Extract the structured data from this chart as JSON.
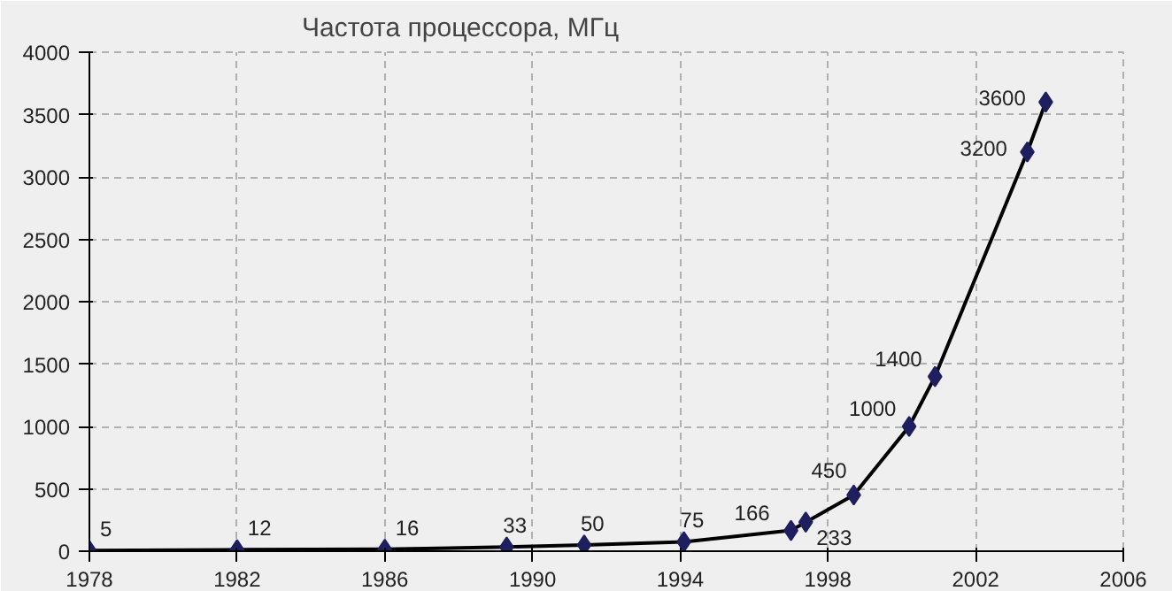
{
  "chart_data": {
    "type": "line",
    "title": "Частота процессора, МГц",
    "x": [
      1978,
      1982,
      1986,
      1989.3,
      1991.4,
      1994.1,
      1997.0,
      1997.4,
      1998.7,
      2000.2,
      2000.9,
      2003.4,
      2003.9
    ],
    "series": [
      {
        "color": "#1f1f5f",
        "values": [
          5,
          12,
          16,
          33,
          50,
          75,
          166,
          233,
          450,
          1000,
          1400,
          3200,
          3600
        ]
      }
    ],
    "data_labels": true,
    "marker": "diamond",
    "line_style": "solid",
    "xlim": [
      1978,
      2006
    ],
    "xticks": [
      1978,
      1982,
      1986,
      1990,
      1994,
      1998,
      2002,
      2006
    ],
    "ylim": [
      0,
      4000
    ],
    "yticks": [
      0,
      500,
      1000,
      1500,
      2000,
      2500,
      3000,
      3500,
      4000
    ],
    "grid": true
  }
}
